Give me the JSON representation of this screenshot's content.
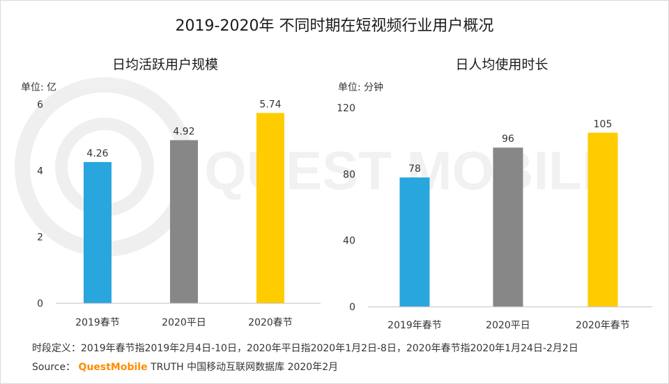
{
  "title": "2019-2020年 不同时期在短视频行业用户概况",
  "watermark_text": "QUEST MOBILE",
  "footer": {
    "definition": "时段定义：2019年春节指2019年2月4日-10日，2020年平日指2020年1月2日-8日，2020年春节指2020年1月24日-2月2日",
    "source_label": "Source：",
    "source_brand": "QuestMobile",
    "source_rest": " TRUTH 中国移动互联网数据库 2020年2月"
  },
  "colors": {
    "blue": "#29a6dd",
    "gray": "#878787",
    "yellow": "#ffcc00"
  },
  "chart_data": [
    {
      "type": "bar",
      "title": "日均活跃用户规模",
      "unit_label": "单位: 亿",
      "categories": [
        "2019春节",
        "2020平日",
        "2020春节"
      ],
      "values": [
        4.26,
        4.92,
        5.74
      ],
      "value_labels": [
        "4.26",
        "4.92",
        "5.74"
      ],
      "ylim": [
        0,
        6
      ],
      "yticks": [
        0,
        2,
        4,
        6
      ],
      "bar_colors": [
        "#29a6dd",
        "#878787",
        "#ffcc00"
      ],
      "grid": false
    },
    {
      "type": "bar",
      "title": "日人均使用时长",
      "unit_label": "单位: 分钟",
      "categories": [
        "2019年春节",
        "2020平日",
        "2020年春节"
      ],
      "values": [
        78,
        96,
        105
      ],
      "value_labels": [
        "78",
        "96",
        "105"
      ],
      "ylim": [
        0,
        120
      ],
      "yticks": [
        0,
        40,
        80,
        120
      ],
      "bar_colors": [
        "#29a6dd",
        "#878787",
        "#ffcc00"
      ],
      "grid": false
    }
  ]
}
